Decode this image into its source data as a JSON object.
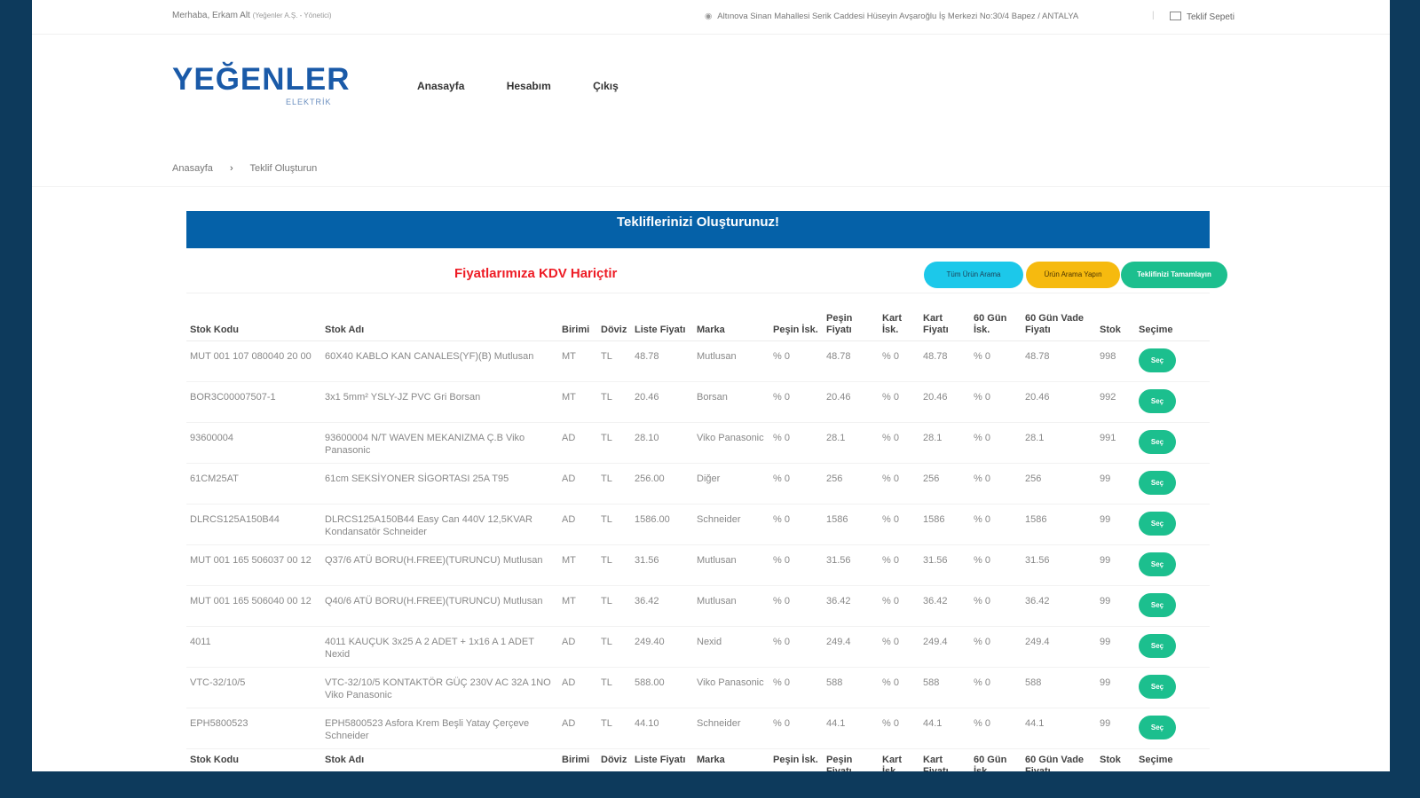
{
  "topbar": {
    "greeting": "Merhaba, Erkam Alt",
    "greeting_sub": "(Yeğenler A.Ş. - Yönetici)",
    "address": "Altınova Sinan Mahallesi Serik Caddesi Hüseyin Avşaroğlu İş Merkezi No:30/4 Bapez / ANTALYA",
    "separator": "|",
    "quote_link": "Teklif Sepeti"
  },
  "logo": {
    "word": "YEĞENLER",
    "sub": "ELEKTRİK"
  },
  "nav": {
    "home": "Anasayfa",
    "account": "Hesabım",
    "logout": "Çıkış"
  },
  "breadcrumb": {
    "home": "Anasayfa",
    "arrow": "›",
    "current": "Teklif Oluşturun"
  },
  "banner": {
    "title": "Tekliflerinizi Oluşturunuz!"
  },
  "price_note": "Fiyatlarımıza KDV Hariçtir",
  "buttons": {
    "all_products": "Tüm Ürün Arama",
    "search": "Ürün Arama Yapın",
    "complete": "Teklifinizi Tamamlayın"
  },
  "table": {
    "headers": [
      "Stok Kodu",
      "Stok Adı",
      "Birimi",
      "Döviz",
      "Liste Fiyatı",
      "Marka",
      "Peşin İsk.",
      "Peşin Fiyatı",
      "Kart İsk.",
      "Kart Fiyatı",
      "60 Gün İsk.",
      "60 Gün Vade Fiyatı",
      "Stok",
      "Seçime"
    ],
    "select_label": "Seç",
    "rows": [
      [
        "MUT 001 107 080040 20 00",
        "60X40 KABLO KAN CANALES(YF)(B) Mutlusan",
        "MT",
        "TL",
        "48.78",
        "Mutlusan",
        "% 0",
        "48.78",
        "% 0",
        "48.78",
        "% 0",
        "48.78",
        "998"
      ],
      [
        "BOR3C00007507-1",
        "3x1 5mm² YSLY-JZ PVC Gri Borsan",
        "MT",
        "TL",
        "20.46",
        "Borsan",
        "% 0",
        "20.46",
        "% 0",
        "20.46",
        "% 0",
        "20.46",
        "992"
      ],
      [
        "93600004",
        "93600004 N/T WAVEN MEKANIZMA Ç.B Viko Panasonic",
        "AD",
        "TL",
        "28.10",
        "Viko Panasonic",
        "% 0",
        "28.1",
        "% 0",
        "28.1",
        "% 0",
        "28.1",
        "991"
      ],
      [
        "61CM25AT",
        "61cm SEKSİYONER SİGORTASI 25A T95",
        "AD",
        "TL",
        "256.00",
        "Diğer",
        "% 0",
        "256",
        "% 0",
        "256",
        "% 0",
        "256",
        "99"
      ],
      [
        "DLRCS125A150B44",
        "DLRCS125A150B44 Easy Can 440V 12,5KVAR Kondansatör Schneider",
        "AD",
        "TL",
        "1586.00",
        "Schneider",
        "% 0",
        "1586",
        "% 0",
        "1586",
        "% 0",
        "1586",
        "99"
      ],
      [
        "MUT 001 165 506037 00 12",
        "Q37/6 ATÜ BORU(H.FREE)(TURUNCU) Mutlusan",
        "MT",
        "TL",
        "31.56",
        "Mutlusan",
        "% 0",
        "31.56",
        "% 0",
        "31.56",
        "% 0",
        "31.56",
        "99"
      ],
      [
        "MUT 001 165 506040 00 12",
        "Q40/6 ATÜ BORU(H.FREE)(TURUNCU) Mutlusan",
        "MT",
        "TL",
        "36.42",
        "Mutlusan",
        "% 0",
        "36.42",
        "% 0",
        "36.42",
        "% 0",
        "36.42",
        "99"
      ],
      [
        "4011",
        "4011 KAUÇUK 3x25 A 2 ADET + 1x16 A 1 ADET Nexid",
        "AD",
        "TL",
        "249.40",
        "Nexid",
        "% 0",
        "249.4",
        "% 0",
        "249.4",
        "% 0",
        "249.4",
        "99"
      ],
      [
        "VTC-32/10/5",
        "VTC-32/10/5 KONTAKTÖR GÜÇ 230V AC 32A 1NO Viko Panasonic",
        "AD",
        "TL",
        "588.00",
        "Viko Panasonic",
        "% 0",
        "588",
        "% 0",
        "588",
        "% 0",
        "588",
        "99"
      ],
      [
        "EPH5800523",
        "EPH5800523 Asfora Krem Beşli Yatay Çerçeve Schneider",
        "AD",
        "TL",
        "44.10",
        "Schneider",
        "% 0",
        "44.1",
        "% 0",
        "44.1",
        "% 0",
        "44.1",
        "99"
      ]
    ]
  },
  "colors": {
    "frame": "#0d3a5c",
    "banner": "#0561a8",
    "price_note": "#ee1c25",
    "btn_all": "#1cc8ea",
    "btn_search": "#f6ba0f",
    "btn_done": "#1cbf8e",
    "logo": "#1a5aa8"
  },
  "icons": {
    "address": "map-pin-icon",
    "quote": "cart-icon"
  }
}
